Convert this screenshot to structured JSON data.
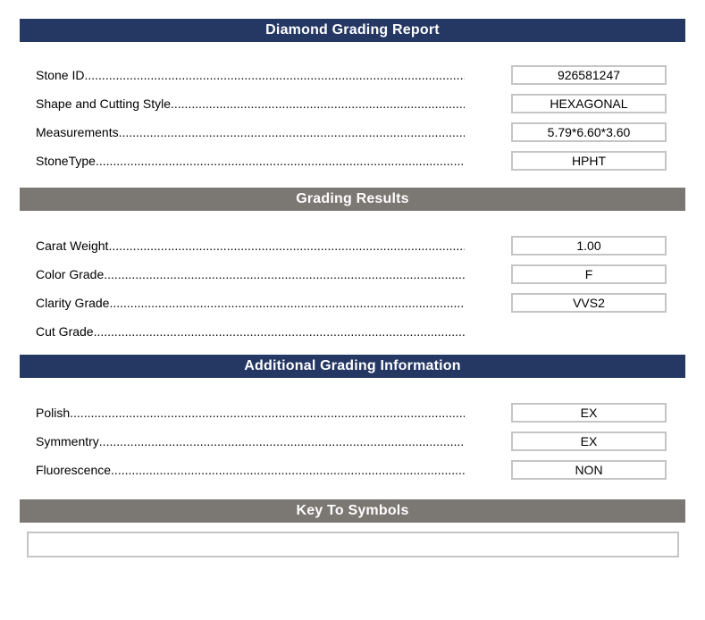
{
  "page": {
    "sections": [
      {
        "title": "Diamond Grading Report",
        "style": "navy",
        "fields": [
          {
            "label": "Stone ID",
            "value": "926581247"
          },
          {
            "label": "Shape and Cutting Style",
            "value": "HEXAGONAL"
          },
          {
            "label": "Measurements",
            "value": "5.79*6.60*3.60"
          },
          {
            "label": "StoneType",
            "value": "HPHT"
          }
        ]
      },
      {
        "title": "Grading Results",
        "style": "gray",
        "fields": [
          {
            "label": "Carat Weight",
            "value": "1.00"
          },
          {
            "label": "Color Grade",
            "value": "F"
          },
          {
            "label": "Clarity Grade",
            "value": "VVS2"
          },
          {
            "label": "Cut Grade",
            "value": ""
          }
        ]
      },
      {
        "title": "Additional Grading Information",
        "style": "navy",
        "fields": [
          {
            "label": "Polish",
            "value": "EX"
          },
          {
            "label": "Symmentry",
            "value": "EX"
          },
          {
            "label": "Fluorescence",
            "value": "NON"
          }
        ]
      },
      {
        "title": "Key To Symbols",
        "style": "gray",
        "key_box_value": ""
      }
    ]
  },
  "colors": {
    "navy_header": "#253864",
    "gray_header": "#7B7773",
    "box_border": "#C5C5C5",
    "header_text": "#FFFFFF",
    "label_text": "#000000"
  }
}
